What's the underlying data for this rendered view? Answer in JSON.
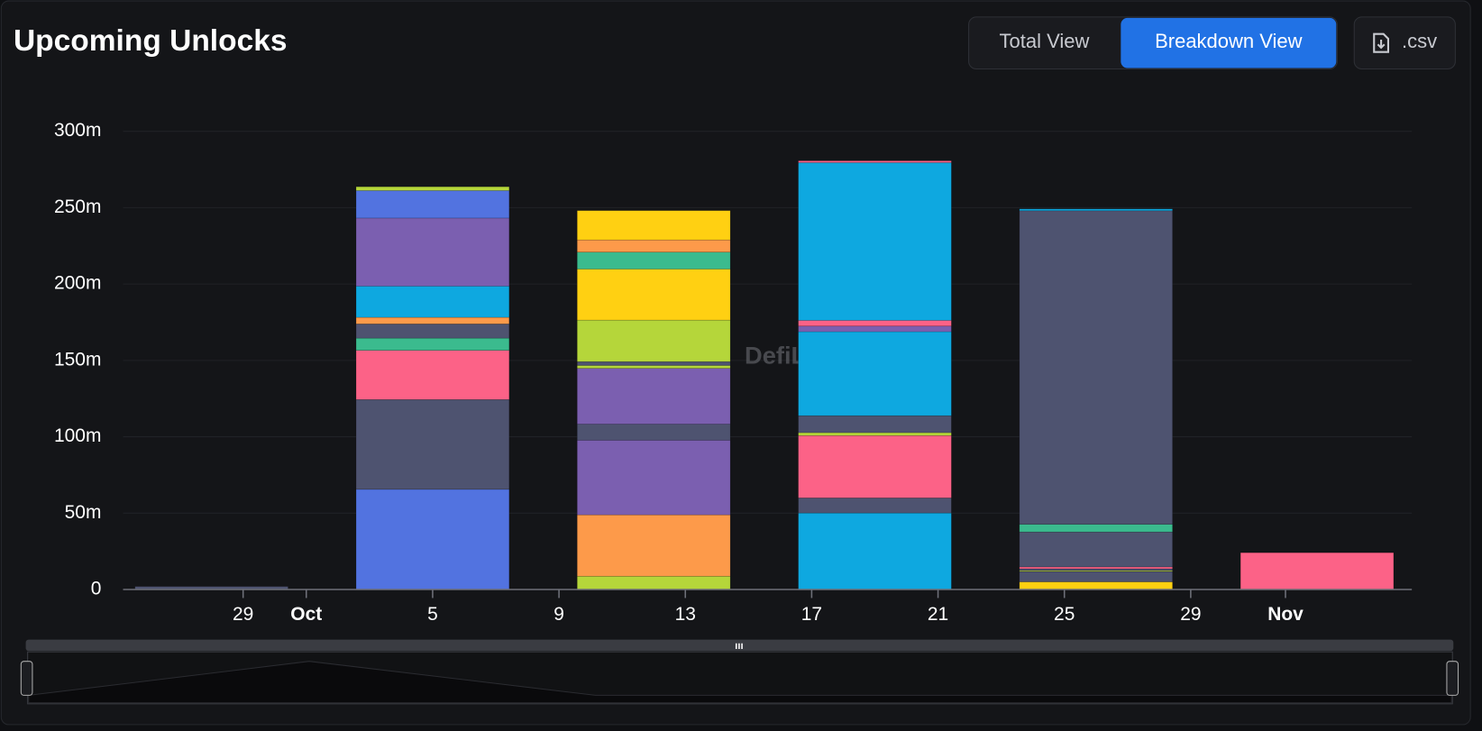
{
  "header": {
    "title": "Upcoming Unlocks",
    "buttons": [
      "Total View",
      "Breakdown View",
      ".csv"
    ]
  },
  "chart_data": {
    "type": "stacked-bar",
    "watermark": "DefiLlama",
    "xlim": [
      25.2,
      66
    ],
    "xticks": [
      {
        "value": 29,
        "label": "29"
      },
      {
        "value": 31,
        "label": "Oct"
      },
      {
        "value": 35,
        "label": "5"
      },
      {
        "value": 39,
        "label": "9"
      },
      {
        "value": 43,
        "label": "13"
      },
      {
        "value": 47,
        "label": "17"
      },
      {
        "value": 51,
        "label": "21"
      },
      {
        "value": 55,
        "label": "25"
      },
      {
        "value": 59,
        "label": "29"
      },
      {
        "value": 62,
        "label": "Nov"
      }
    ],
    "ylim": [
      0,
      300
    ],
    "yticks": [
      0,
      {
        "value": 50,
        "label": "50m"
      },
      {
        "value": 100,
        "label": "100m"
      },
      {
        "value": 150,
        "label": "150m"
      },
      {
        "value": 200,
        "label": "200m"
      },
      {
        "value": 250,
        "label": "250m"
      },
      {
        "value": 300,
        "label": "300m"
      }
    ],
    "grid": true,
    "bars": [
      {
        "x": 28,
        "segments": [
          {
            "value": 2,
            "color": "#4e5370"
          }
        ]
      },
      {
        "x": 35,
        "segments": [
          {
            "value": 65.6,
            "color": "#5273e0"
          },
          {
            "value": 58.8,
            "color": "#4e5370"
          },
          {
            "value": 32.2,
            "color": "#fc6287"
          },
          {
            "value": 8,
            "color": "#3bbb8e"
          },
          {
            "value": 9.3,
            "color": "#4e5370"
          },
          {
            "value": 4.3,
            "color": "#fd9a4a"
          },
          {
            "value": 20.4,
            "color": "#0ea8e0"
          },
          {
            "value": 44.6,
            "color": "#7b5fb0"
          },
          {
            "value": 18,
            "color": "#5273e0"
          },
          {
            "value": 2.5,
            "color": "#b5d63a"
          }
        ]
      },
      {
        "x": 42,
        "segments": [
          {
            "value": 8.7,
            "color": "#b5d63a"
          },
          {
            "value": 40.2,
            "color": "#fd9a4a"
          },
          {
            "value": 48.9,
            "color": "#7b5fb0"
          },
          {
            "value": 10.5,
            "color": "#4e5370"
          },
          {
            "value": 36.5,
            "color": "#7b5fb0"
          },
          {
            "value": 1.9,
            "color": "#b5d63a"
          },
          {
            "value": 2.5,
            "color": "#4e5370"
          },
          {
            "value": 27.2,
            "color": "#b5d63a"
          },
          {
            "value": 33.4,
            "color": "#ffd012"
          },
          {
            "value": 11.1,
            "color": "#3bbb8e"
          },
          {
            "value": 8,
            "color": "#fd9a4a"
          },
          {
            "value": 19.2,
            "color": "#ffd012"
          }
        ]
      },
      {
        "x": 49,
        "segments": [
          {
            "value": 50.1,
            "color": "#0ea8e0"
          },
          {
            "value": 9.9,
            "color": "#4e5370"
          },
          {
            "value": 40.8,
            "color": "#fc6287"
          },
          {
            "value": 1.9,
            "color": "#b5d63a"
          },
          {
            "value": 11.1,
            "color": "#4e5370"
          },
          {
            "value": 55,
            "color": "#0ea8e0"
          },
          {
            "value": 3.7,
            "color": "#7b5fb0"
          },
          {
            "value": 3.7,
            "color": "#fc6287"
          },
          {
            "value": 103.3,
            "color": "#0ea8e0"
          },
          {
            "value": 1.2,
            "color": "#fc6287"
          }
        ]
      },
      {
        "x": 56,
        "segments": [
          {
            "value": 5,
            "color": "#ffd012"
          },
          {
            "value": 6.8,
            "color": "#4e5370"
          },
          {
            "value": 0.6,
            "color": "#b5d63a"
          },
          {
            "value": 1.2,
            "color": "#4e5370"
          },
          {
            "value": 1.2,
            "color": "#fc6287"
          },
          {
            "value": 22.9,
            "color": "#4e5370"
          },
          {
            "value": 5,
            "color": "#3bbb8e"
          },
          {
            "value": 205.3,
            "color": "#4e5370"
          },
          {
            "value": 1.2,
            "color": "#0ea8e0"
          }
        ]
      },
      {
        "x": 63,
        "segments": [
          {
            "value": 24.1,
            "color": "#fc6287"
          }
        ]
      }
    ]
  }
}
